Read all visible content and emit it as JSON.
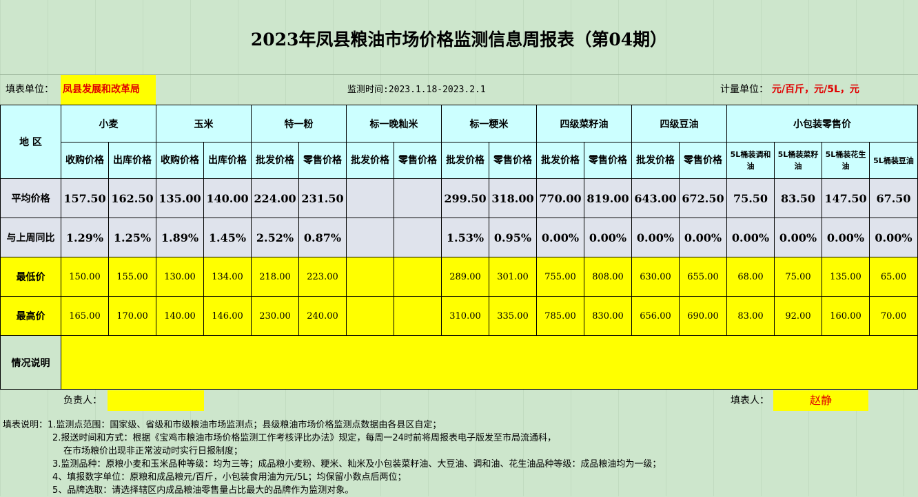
{
  "title": "2023年凤县粮油市场价格监测信息周报表（第04期）",
  "info": {
    "unit_label": "填表单位：",
    "unit_value": "凤县发展和改革局",
    "period": "监测时间:2023.1.18-2023.2.1",
    "measure_label": "计量单位：",
    "measure_value": "元/百斤，元/5L，元"
  },
  "header": {
    "region": "地 区",
    "groups": [
      "小麦",
      "玉米",
      "特一粉",
      "标一晚籼米",
      "标一粳米",
      "四级菜籽油",
      "四级豆油",
      "小包装零售价"
    ],
    "subs": [
      "收购价格",
      "出库价格",
      "收购价格",
      "出库价格",
      "批发价格",
      "零售价格",
      "批发价格",
      "零售价格",
      "批发价格",
      "零售价格",
      "批发价格",
      "零售价格",
      "批发价格",
      "零售价格",
      "5L桶装调和油",
      "5L桶装菜籽油",
      "5L桶装花生油",
      "5L桶装豆油"
    ]
  },
  "rows": {
    "avg": {
      "label": "平均价格",
      "values": [
        "157.50",
        "162.50",
        "135.00",
        "140.00",
        "224.00",
        "231.50",
        "",
        "",
        "299.50",
        "318.00",
        "770.00",
        "819.00",
        "643.00",
        "672.50",
        "75.50",
        "83.50",
        "147.50",
        "67.50"
      ]
    },
    "yoy": {
      "label": "与上周同比",
      "values": [
        "1.29%",
        "1.25%",
        "1.89%",
        "1.45%",
        "2.52%",
        "0.87%",
        "",
        "",
        "1.53%",
        "0.95%",
        "0.00%",
        "0.00%",
        "0.00%",
        "0.00%",
        "0.00%",
        "0.00%",
        "0.00%",
        "0.00%"
      ]
    },
    "min": {
      "label": "最低价",
      "values": [
        "150.00",
        "155.00",
        "130.00",
        "134.00",
        "218.00",
        "223.00",
        "",
        "",
        "289.00",
        "301.00",
        "755.00",
        "808.00",
        "630.00",
        "655.00",
        "68.00",
        "75.00",
        "135.00",
        "65.00"
      ]
    },
    "max": {
      "label": "最高价",
      "values": [
        "165.00",
        "170.00",
        "140.00",
        "146.00",
        "230.00",
        "240.00",
        "",
        "",
        "310.00",
        "335.00",
        "785.00",
        "830.00",
        "656.00",
        "690.00",
        "83.00",
        "92.00",
        "160.00",
        "70.00"
      ]
    },
    "note": {
      "label": "情况说明",
      "value": ""
    }
  },
  "sign": {
    "responsible_label": "负责人：",
    "responsible_value": "",
    "filler_label": "填表人：",
    "filler_value": "赵静"
  },
  "notes": [
    "填表说明：1.监测点范围：国家级、省级和市级粮油市场监测点；县级粮油市场价格监测点数据由各县区自定；",
    "2.报送时间和方式：根据《宝鸡市粮油市场价格监测工作考核评比办法》规定，每周一24时前将周报表电子版发至市局流通科，",
    "在市场粮价出现非正常波动时实行日报制度；",
    "3.监测品种：原粮小麦和玉米品种等级：均为三等；成品粮小麦粉、粳米、籼米及小包装菜籽油、大豆油、调和油、花生油品种等级：成品粮油均为一级；",
    "4、填报数字单位：原粮和成品粮元/百斤，小包装食用油为元/5L；均保留小数点后两位；",
    "5、品牌选取：请选择辖区内成品粮油零售量占比最大的品牌作为监测对象。"
  ]
}
